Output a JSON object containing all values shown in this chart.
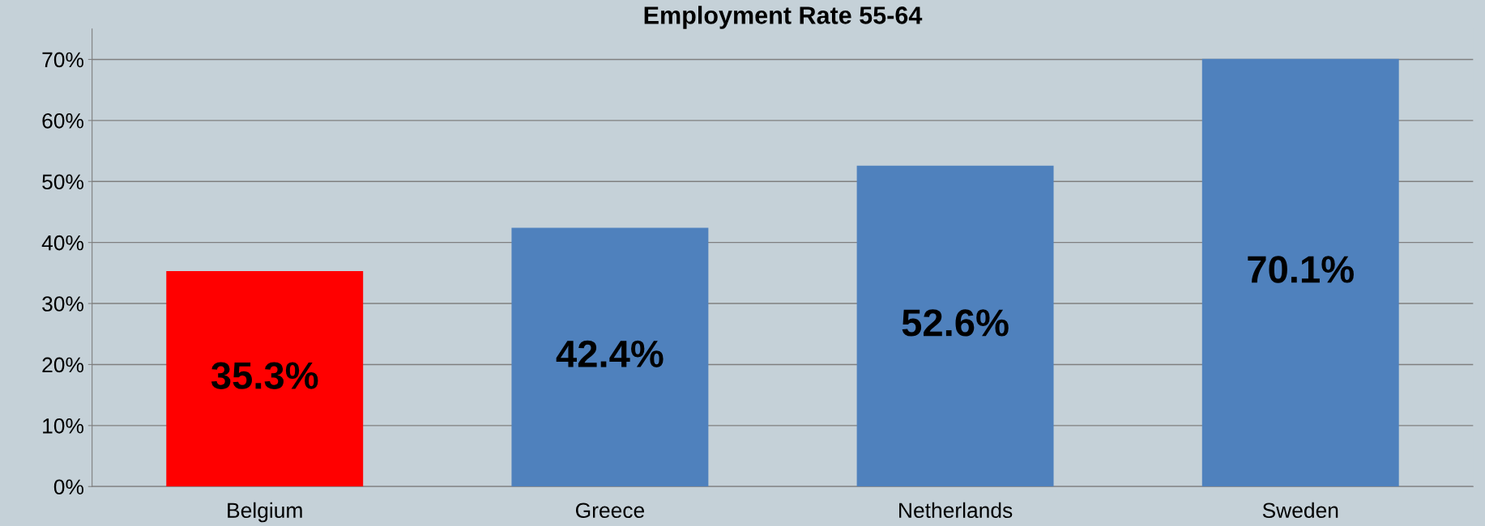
{
  "chart_data": {
    "type": "bar",
    "title": "Employment Rate 55-64",
    "categories": [
      "Belgium",
      "Greece",
      "Netherlands",
      "Sweden"
    ],
    "values": [
      35.3,
      42.4,
      52.6,
      70.1
    ],
    "colors": [
      "#ff0000",
      "#4f81bd",
      "#4f81bd",
      "#4f81bd"
    ],
    "value_labels": [
      "35.3%",
      "42.4%",
      "52.6%",
      "70.1%"
    ],
    "ylim": [
      0,
      75
    ],
    "yticks": [
      {
        "value": 0,
        "label": "0%"
      },
      {
        "value": 10,
        "label": "10%"
      },
      {
        "value": 20,
        "label": "20%"
      },
      {
        "value": 30,
        "label": "30%"
      },
      {
        "value": 40,
        "label": "40%"
      },
      {
        "value": 50,
        "label": "50%"
      },
      {
        "value": 60,
        "label": "60%"
      },
      {
        "value": 70,
        "label": "70%"
      }
    ],
    "grid": "y",
    "legend": false
  }
}
